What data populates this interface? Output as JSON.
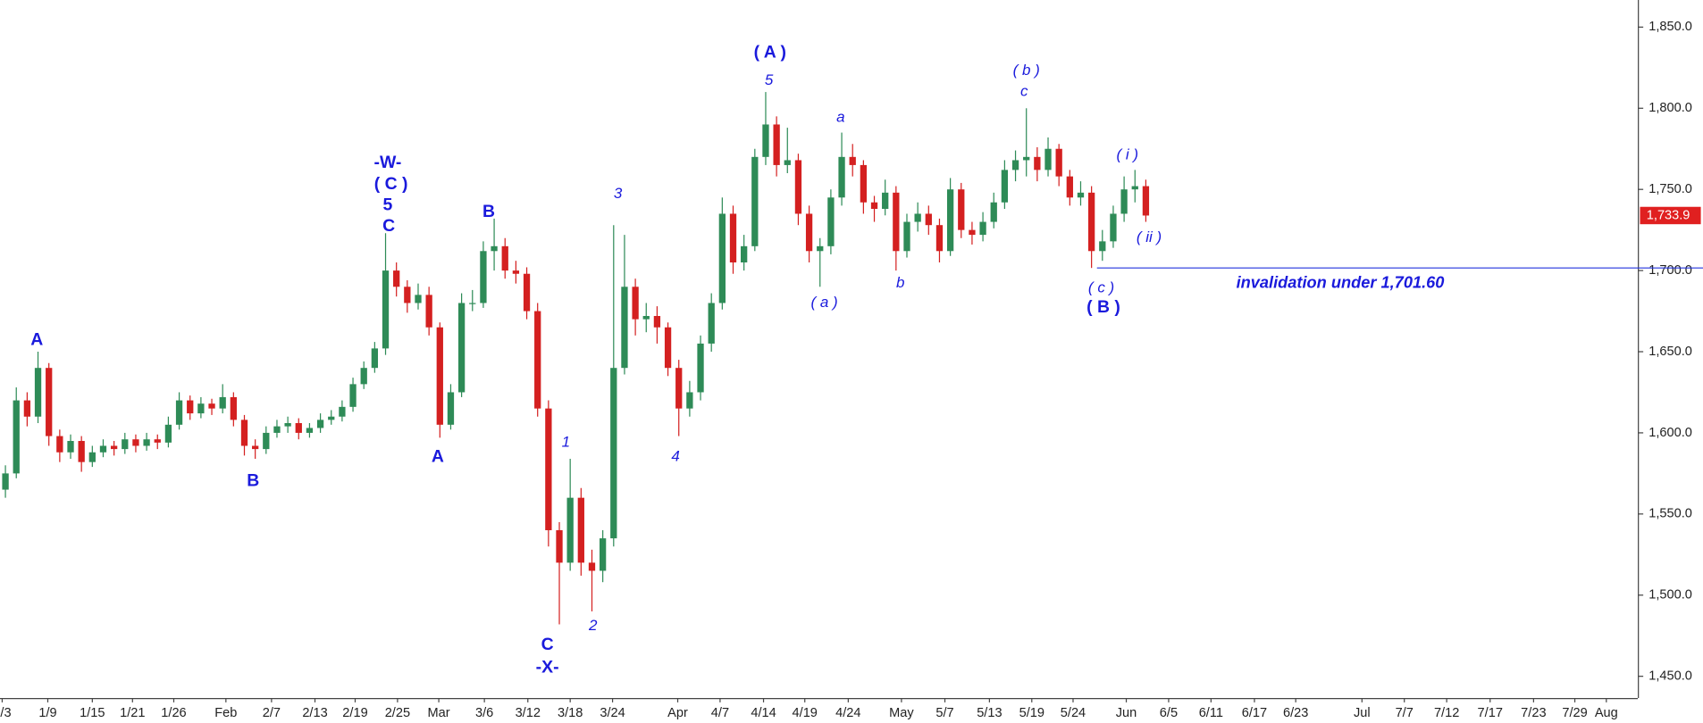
{
  "chart_data": {
    "type": "candlestick",
    "up_color": "#2e8b57",
    "down_color": "#d42020",
    "label_color": "#1a1adc",
    "xlim": [
      0,
      150.8
    ],
    "ylim": [
      1436.6,
      1866.7
    ],
    "yticks": [
      {
        "value": 1450,
        "label": "1,450.0"
      },
      {
        "value": 1500,
        "label": "1,500.0"
      },
      {
        "value": 1550,
        "label": "1,550.0"
      },
      {
        "value": 1600,
        "label": "1,600.0"
      },
      {
        "value": 1650,
        "label": "1,650.0"
      },
      {
        "value": 1700,
        "label": "1,700.0"
      },
      {
        "value": 1750,
        "label": "1,750.0"
      },
      {
        "value": 1800,
        "label": "1,800.0"
      },
      {
        "value": 1850,
        "label": "1,850.0"
      }
    ],
    "xticks": [
      {
        "value": 0.2,
        "label": "1/3"
      },
      {
        "value": 4.4,
        "label": "1/9"
      },
      {
        "value": 8.5,
        "label": "1/15"
      },
      {
        "value": 12.2,
        "label": "1/21"
      },
      {
        "value": 16,
        "label": "1/26"
      },
      {
        "value": 20.8,
        "label": "Feb"
      },
      {
        "value": 25,
        "label": "2/7"
      },
      {
        "value": 29,
        "label": "2/13"
      },
      {
        "value": 32.7,
        "label": "2/19"
      },
      {
        "value": 36.6,
        "label": "2/25"
      },
      {
        "value": 40.4,
        "label": "Mar"
      },
      {
        "value": 44.6,
        "label": "3/6"
      },
      {
        "value": 48.6,
        "label": "3/12"
      },
      {
        "value": 52.5,
        "label": "3/18"
      },
      {
        "value": 56.4,
        "label": "3/24"
      },
      {
        "value": 62.4,
        "label": "Apr"
      },
      {
        "value": 66.3,
        "label": "4/7"
      },
      {
        "value": 70.3,
        "label": "4/14"
      },
      {
        "value": 74.1,
        "label": "4/19"
      },
      {
        "value": 78.1,
        "label": "4/24"
      },
      {
        "value": 83,
        "label": "May"
      },
      {
        "value": 87,
        "label": "5/7"
      },
      {
        "value": 91.1,
        "label": "5/13"
      },
      {
        "value": 95,
        "label": "5/19"
      },
      {
        "value": 98.8,
        "label": "5/24"
      },
      {
        "value": 103.7,
        "label": "Jun"
      },
      {
        "value": 107.6,
        "label": "6/5"
      },
      {
        "value": 111.5,
        "label": "6/11"
      },
      {
        "value": 115.5,
        "label": "6/17"
      },
      {
        "value": 119.3,
        "label": "6/23"
      },
      {
        "value": 125.4,
        "label": "Jul"
      },
      {
        "value": 129.3,
        "label": "7/7"
      },
      {
        "value": 133.2,
        "label": "7/12"
      },
      {
        "value": 137.2,
        "label": "7/17"
      },
      {
        "value": 141.2,
        "label": "7/23"
      },
      {
        "value": 145,
        "label": "7/29"
      },
      {
        "value": 147.9,
        "label": "Aug"
      }
    ],
    "ohlc": [
      [
        1565,
        1580,
        1560,
        1575
      ],
      [
        1575,
        1628,
        1572,
        1620
      ],
      [
        1620,
        1625,
        1604,
        1610
      ],
      [
        1610,
        1650,
        1606,
        1640
      ],
      [
        1640,
        1643,
        1592,
        1598
      ],
      [
        1598,
        1602,
        1582,
        1588
      ],
      [
        1588,
        1599,
        1584,
        1595
      ],
      [
        1595,
        1598,
        1576,
        1582
      ],
      [
        1582,
        1592,
        1579,
        1588
      ],
      [
        1588,
        1596,
        1585,
        1592
      ],
      [
        1592,
        1595,
        1586,
        1590
      ],
      [
        1590,
        1600,
        1587,
        1596
      ],
      [
        1596,
        1599,
        1588,
        1592
      ],
      [
        1592,
        1600,
        1589,
        1596
      ],
      [
        1596,
        1599,
        1590,
        1594
      ],
      [
        1594,
        1610,
        1591,
        1605
      ],
      [
        1605,
        1625,
        1602,
        1620
      ],
      [
        1620,
        1623,
        1608,
        1612
      ],
      [
        1612,
        1622,
        1609,
        1618
      ],
      [
        1618,
        1621,
        1611,
        1615
      ],
      [
        1615,
        1630,
        1612,
        1622
      ],
      [
        1622,
        1625,
        1604,
        1608
      ],
      [
        1608,
        1611,
        1586,
        1592
      ],
      [
        1592,
        1596,
        1584,
        1590
      ],
      [
        1590,
        1604,
        1587,
        1600
      ],
      [
        1600,
        1608,
        1597,
        1604
      ],
      [
        1604,
        1610,
        1600,
        1606
      ],
      [
        1606,
        1609,
        1596,
        1600
      ],
      [
        1600,
        1606,
        1597,
        1603
      ],
      [
        1603,
        1612,
        1600,
        1608
      ],
      [
        1608,
        1614,
        1605,
        1610
      ],
      [
        1610,
        1620,
        1607,
        1616
      ],
      [
        1616,
        1634,
        1613,
        1630
      ],
      [
        1630,
        1644,
        1627,
        1640
      ],
      [
        1640,
        1656,
        1637,
        1652
      ],
      [
        1652,
        1723,
        1648,
        1700
      ],
      [
        1700,
        1705,
        1684,
        1690
      ],
      [
        1690,
        1694,
        1674,
        1680
      ],
      [
        1680,
        1692,
        1676,
        1685
      ],
      [
        1685,
        1690,
        1660,
        1665
      ],
      [
        1665,
        1668,
        1597,
        1605
      ],
      [
        1605,
        1630,
        1602,
        1625
      ],
      [
        1625,
        1686,
        1622,
        1680
      ],
      [
        1680,
        1688,
        1675,
        1680
      ],
      [
        1680,
        1718,
        1677,
        1712
      ],
      [
        1712,
        1732,
        1700,
        1715
      ],
      [
        1715,
        1720,
        1695,
        1700
      ],
      [
        1700,
        1706,
        1692,
        1698
      ],
      [
        1698,
        1702,
        1670,
        1675
      ],
      [
        1675,
        1680,
        1610,
        1615
      ],
      [
        1615,
        1620,
        1530,
        1540
      ],
      [
        1540,
        1545,
        1482,
        1520
      ],
      [
        1520,
        1584,
        1515,
        1560
      ],
      [
        1560,
        1566,
        1512,
        1520
      ],
      [
        1520,
        1528,
        1490,
        1515
      ],
      [
        1515,
        1540,
        1508,
        1535
      ],
      [
        1535,
        1728,
        1530,
        1640
      ],
      [
        1640,
        1722,
        1636,
        1690
      ],
      [
        1690,
        1695,
        1660,
        1670
      ],
      [
        1670,
        1680,
        1662,
        1672
      ],
      [
        1672,
        1678,
        1655,
        1665
      ],
      [
        1665,
        1668,
        1635,
        1640
      ],
      [
        1640,
        1645,
        1598,
        1615
      ],
      [
        1615,
        1632,
        1610,
        1625
      ],
      [
        1625,
        1660,
        1620,
        1655
      ],
      [
        1655,
        1686,
        1650,
        1680
      ],
      [
        1680,
        1745,
        1676,
        1735
      ],
      [
        1735,
        1740,
        1698,
        1705
      ],
      [
        1705,
        1722,
        1700,
        1715
      ],
      [
        1715,
        1775,
        1712,
        1770
      ],
      [
        1770,
        1810,
        1765,
        1790
      ],
      [
        1790,
        1795,
        1758,
        1765
      ],
      [
        1765,
        1788,
        1760,
        1768
      ],
      [
        1768,
        1772,
        1728,
        1735
      ],
      [
        1735,
        1740,
        1705,
        1712
      ],
      [
        1712,
        1720,
        1690,
        1715
      ],
      [
        1715,
        1750,
        1710,
        1745
      ],
      [
        1745,
        1785,
        1740,
        1770
      ],
      [
        1770,
        1778,
        1758,
        1765
      ],
      [
        1765,
        1768,
        1735,
        1742
      ],
      [
        1742,
        1746,
        1730,
        1738
      ],
      [
        1738,
        1756,
        1734,
        1748
      ],
      [
        1748,
        1752,
        1700,
        1712
      ],
      [
        1712,
        1735,
        1708,
        1730
      ],
      [
        1730,
        1742,
        1724,
        1735
      ],
      [
        1735,
        1740,
        1722,
        1728
      ],
      [
        1728,
        1732,
        1705,
        1712
      ],
      [
        1712,
        1757,
        1709,
        1750
      ],
      [
        1750,
        1754,
        1720,
        1725
      ],
      [
        1725,
        1730,
        1716,
        1722
      ],
      [
        1722,
        1736,
        1718,
        1730
      ],
      [
        1730,
        1748,
        1726,
        1742
      ],
      [
        1742,
        1768,
        1738,
        1762
      ],
      [
        1762,
        1774,
        1755,
        1768
      ],
      [
        1768,
        1800,
        1758,
        1770
      ],
      [
        1770,
        1776,
        1755,
        1762
      ],
      [
        1762,
        1782,
        1758,
        1775
      ],
      [
        1775,
        1778,
        1752,
        1758
      ],
      [
        1758,
        1762,
        1740,
        1745
      ],
      [
        1745,
        1755,
        1740,
        1748
      ],
      [
        1748,
        1752,
        1701.6,
        1712
      ],
      [
        1712,
        1725,
        1706,
        1718
      ],
      [
        1718,
        1740,
        1714,
        1735
      ],
      [
        1735,
        1758,
        1730,
        1750
      ],
      [
        1750,
        1762,
        1742,
        1752
      ],
      [
        1752,
        1756,
        1730,
        1733.9
      ]
    ],
    "last_label": {
      "value": 1733.9,
      "label": "1,733.9"
    },
    "invalidation": {
      "value": 1701.6,
      "x_start": 101,
      "text": "invalidation under 1,701.60",
      "text_x": 123.4,
      "text_y": 1692
    },
    "wave_labels_major": [
      {
        "text": "A",
        "x": 3.4,
        "y": 1657
      },
      {
        "text": "B",
        "x": 23.3,
        "y": 1570
      },
      {
        "text": "-W-",
        "x": 35.7,
        "y": 1766
      },
      {
        "text": "( C )",
        "x": 36,
        "y": 1753
      },
      {
        "text": "5",
        "x": 35.7,
        "y": 1740
      },
      {
        "text": "C",
        "x": 35.8,
        "y": 1727
      },
      {
        "text": "A",
        "x": 40.3,
        "y": 1585
      },
      {
        "text": "B",
        "x": 45,
        "y": 1736
      },
      {
        "text": "C",
        "x": 50.4,
        "y": 1469
      },
      {
        "text": "-X-",
        "x": 50.4,
        "y": 1455
      },
      {
        "text": "( A )",
        "x": 70.9,
        "y": 1834
      },
      {
        "text": "( B )",
        "x": 101.6,
        "y": 1677
      }
    ],
    "wave_labels_minor": [
      {
        "text": "1",
        "x": 52.1,
        "y": 1594
      },
      {
        "text": "2",
        "x": 54.6,
        "y": 1481
      },
      {
        "text": "3",
        "x": 56.9,
        "y": 1747
      },
      {
        "text": "4",
        "x": 62.2,
        "y": 1585
      },
      {
        "text": "5",
        "x": 70.8,
        "y": 1817
      },
      {
        "text": "( a )",
        "x": 75.9,
        "y": 1680
      },
      {
        "text": "a",
        "x": 77.4,
        "y": 1794
      },
      {
        "text": "b",
        "x": 82.9,
        "y": 1692
      },
      {
        "text": "( b )",
        "x": 94.5,
        "y": 1823
      },
      {
        "text": "c",
        "x": 94.3,
        "y": 1810
      },
      {
        "text": "( c )",
        "x": 101.4,
        "y": 1689
      },
      {
        "text": "( i )",
        "x": 103.8,
        "y": 1771
      },
      {
        "text": "( ii )",
        "x": 105.8,
        "y": 1720
      }
    ]
  }
}
